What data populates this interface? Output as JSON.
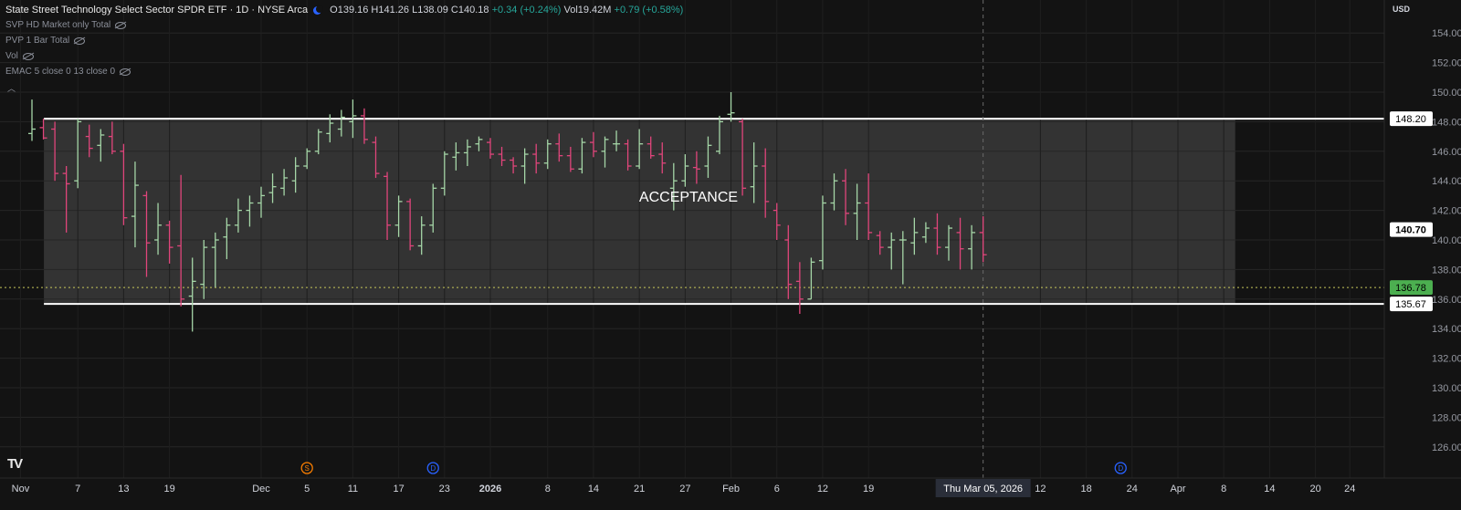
{
  "header": {
    "symbol_title": "State Street Technology Select Sector SPDR ETF · 1D · NYSE Arca",
    "ohlc": {
      "open": "O139.16",
      "high": "H141.26",
      "low": "L138.09",
      "close": "C140.18",
      "change": "+0.34 (+0.24%)"
    },
    "volume": "Vol19.42M",
    "volume_change": "+0.79 (+0.58%)",
    "currency": "USD"
  },
  "indicators": [
    {
      "name": "SVP HD Market only Total",
      "icon": "eye-slash-icon"
    },
    {
      "name": "PVP 1 Bar Total",
      "icon": "eye-slash-icon"
    },
    {
      "name": "Vol",
      "icon": "eye-slash-icon"
    },
    {
      "name": "EMAC 5 close 0 13 close 0",
      "icon": "eye-slash-icon"
    }
  ],
  "colors": {
    "up": "#a5d6a7",
    "down": "#e0457b",
    "box": "#3a3a3a",
    "current_price": "#4caf50"
  },
  "chart_data": {
    "type": "ohlc",
    "y_range": [
      125,
      155
    ],
    "y_ticks": [
      126,
      128,
      130,
      132,
      134,
      136,
      138,
      140,
      142,
      144,
      146,
      148,
      150,
      152,
      154
    ],
    "y_tick_labels": [
      "126.00",
      "128.00",
      "130.00",
      "132.00",
      "134.00",
      "136.00",
      "138.00",
      "140.00",
      "142.00",
      "144.00",
      "146.00",
      "148.00",
      "150.00",
      "152.00",
      "154.00"
    ],
    "x_ticks": [
      {
        "label": "Nov",
        "i": -1
      },
      {
        "label": "7",
        "i": 4
      },
      {
        "label": "13",
        "i": 8
      },
      {
        "label": "19",
        "i": 12
      },
      {
        "label": "Dec",
        "i": 20
      },
      {
        "label": "5",
        "i": 24
      },
      {
        "label": "11",
        "i": 28
      },
      {
        "label": "17",
        "i": 32
      },
      {
        "label": "23",
        "i": 36
      },
      {
        "label": "2026",
        "i": 40
      },
      {
        "label": "8",
        "i": 45
      },
      {
        "label": "14",
        "i": 49
      },
      {
        "label": "21",
        "i": 53
      },
      {
        "label": "27",
        "i": 57
      },
      {
        "label": "Feb",
        "i": 61
      },
      {
        "label": "6",
        "i": 65
      },
      {
        "label": "12",
        "i": 69
      },
      {
        "label": "19",
        "i": 73
      },
      {
        "label": "12",
        "i": 88
      },
      {
        "label": "18",
        "i": 92
      },
      {
        "label": "24",
        "i": 96
      },
      {
        "label": "Apr",
        "i": 100
      },
      {
        "label": "8",
        "i": 104
      },
      {
        "label": "14",
        "i": 108
      },
      {
        "label": "20",
        "i": 112
      },
      {
        "label": "24",
        "i": 115
      }
    ],
    "crosshair": {
      "label": "Thu Mar 05, 2026",
      "i": 83
    },
    "events": [
      {
        "label": "S",
        "i": 24,
        "color": "#f57c00"
      },
      {
        "label": "D",
        "i": 35,
        "color": "#2962ff"
      },
      {
        "label": "D",
        "i": 95,
        "color": "#2962ff"
      }
    ],
    "acceptance_box": {
      "label": "ACCEPTANCE",
      "upper": 148.2,
      "lower": 135.67,
      "start_i": 2,
      "end_i": 105
    },
    "price_labels": [
      {
        "value": 148.2,
        "text": "148.20",
        "style": "white"
      },
      {
        "value": 140.7,
        "text": "140.70",
        "style": "white-bold"
      },
      {
        "value": 136.78,
        "text": "136.78",
        "style": "green"
      },
      {
        "value": 135.67,
        "text": "135.67",
        "style": "white"
      }
    ],
    "bars": [
      [
        147.2,
        149.5,
        146.7,
        147.5
      ],
      [
        147.6,
        148.2,
        146.8,
        146.9
      ],
      [
        147.5,
        148.0,
        144.0,
        144.5
      ],
      [
        144.5,
        145.0,
        140.5,
        143.8
      ],
      [
        144.0,
        148.2,
        143.5,
        148.0
      ],
      [
        147.0,
        147.8,
        145.6,
        146.2
      ],
      [
        146.4,
        147.5,
        145.3,
        147.1
      ],
      [
        147.0,
        148.0,
        145.8,
        146.0
      ],
      [
        146.0,
        146.5,
        141.0,
        141.5
      ],
      [
        141.6,
        145.3,
        139.5,
        143.7
      ],
      [
        143.0,
        143.3,
        137.5,
        139.8
      ],
      [
        140.0,
        142.5,
        139.0,
        141.0
      ],
      [
        141.0,
        141.3,
        138.4,
        139.5
      ],
      [
        139.6,
        144.4,
        135.5,
        136.0
      ],
      [
        136.2,
        138.8,
        133.8,
        137.2
      ],
      [
        137.0,
        140.0,
        136.0,
        139.5
      ],
      [
        139.5,
        140.5,
        136.8,
        140.0
      ],
      [
        140.2,
        141.5,
        138.7,
        141.0
      ],
      [
        141.0,
        142.8,
        140.5,
        142.0
      ],
      [
        142.0,
        143.0,
        140.9,
        142.5
      ],
      [
        142.5,
        143.6,
        141.5,
        143.0
      ],
      [
        143.2,
        144.5,
        142.5,
        143.6
      ],
      [
        143.5,
        144.8,
        143.0,
        144.2
      ],
      [
        144.0,
        145.6,
        143.2,
        145.0
      ],
      [
        145.0,
        146.2,
        144.8,
        146.0
      ],
      [
        146.0,
        147.5,
        145.8,
        147.3
      ],
      [
        147.2,
        148.5,
        146.6,
        147.9
      ],
      [
        147.5,
        148.8,
        147.0,
        148.3
      ],
      [
        148.0,
        149.5,
        146.9,
        148.4
      ],
      [
        148.4,
        148.9,
        146.5,
        146.8
      ],
      [
        146.6,
        147.0,
        144.2,
        144.5
      ],
      [
        144.3,
        144.6,
        140.0,
        141.0
      ],
      [
        141.0,
        143.0,
        140.2,
        142.6
      ],
      [
        142.6,
        142.8,
        139.3,
        139.6
      ],
      [
        139.6,
        141.6,
        139.0,
        141.0
      ],
      [
        141.0,
        143.8,
        140.5,
        143.5
      ],
      [
        143.5,
        146.0,
        143.0,
        145.8
      ],
      [
        145.6,
        146.6,
        144.7,
        145.9
      ],
      [
        145.9,
        146.8,
        145.0,
        146.3
      ],
      [
        146.5,
        147.0,
        146.0,
        146.8
      ],
      [
        146.6,
        146.9,
        145.5,
        145.8
      ],
      [
        145.8,
        146.3,
        145.0,
        145.4
      ],
      [
        145.4,
        145.6,
        144.5,
        145.0
      ],
      [
        145.0,
        146.2,
        143.8,
        145.8
      ],
      [
        145.8,
        146.5,
        144.5,
        145.2
      ],
      [
        145.2,
        146.8,
        144.8,
        146.5
      ],
      [
        146.5,
        147.2,
        145.3,
        145.7
      ],
      [
        145.7,
        146.3,
        144.6,
        144.8
      ],
      [
        144.8,
        146.9,
        144.5,
        146.6
      ],
      [
        146.6,
        147.3,
        145.6,
        146.0
      ],
      [
        146.0,
        147.0,
        144.9,
        146.8
      ],
      [
        146.5,
        147.4,
        146.0,
        146.5
      ],
      [
        146.5,
        146.8,
        144.7,
        145.0
      ],
      [
        145.0,
        147.5,
        144.8,
        146.5
      ],
      [
        146.5,
        147.0,
        145.5,
        145.7
      ],
      [
        145.8,
        146.6,
        144.5,
        145.2
      ],
      [
        143.5,
        145.2,
        142.0,
        144.0
      ],
      [
        144.0,
        145.8,
        143.6,
        145.0
      ],
      [
        144.9,
        146.0,
        143.8,
        144.8
      ],
      [
        145.0,
        147.0,
        144.2,
        146.4
      ],
      [
        146.0,
        148.4,
        145.8,
        148.0
      ],
      [
        148.5,
        150.0,
        148.0,
        148.6
      ],
      [
        148.0,
        148.2,
        143.0,
        143.5
      ],
      [
        143.6,
        146.6,
        142.5,
        145.0
      ],
      [
        145.0,
        146.2,
        141.5,
        142.6
      ],
      [
        142.0,
        142.5,
        140.0,
        141.0
      ],
      [
        140.0,
        141.0,
        136.0,
        137.0
      ],
      [
        137.2,
        138.5,
        135.0,
        136.0
      ],
      [
        136.0,
        138.8,
        136.0,
        138.5
      ],
      [
        138.6,
        143.0,
        138.0,
        142.5
      ],
      [
        142.5,
        144.5,
        142.0,
        144.0
      ],
      [
        144.0,
        144.8,
        141.0,
        141.8
      ],
      [
        141.8,
        143.8,
        140.0,
        142.5
      ],
      [
        142.5,
        144.5,
        140.0,
        140.5
      ],
      [
        140.3,
        140.6,
        139.0,
        139.5
      ],
      [
        139.5,
        140.5,
        138.0,
        140.0
      ],
      [
        140.0,
        140.6,
        137.0,
        140.0
      ],
      [
        139.8,
        141.5,
        139.0,
        140.5
      ],
      [
        140.2,
        141.2,
        139.8,
        140.8
      ],
      [
        140.8,
        141.8,
        139.0,
        139.5
      ],
      [
        139.5,
        141.0,
        138.6,
        140.8
      ],
      [
        140.5,
        141.5,
        138.0,
        139.4
      ],
      [
        139.4,
        141.0,
        138.0,
        140.5
      ],
      [
        140.5,
        141.6,
        138.5,
        139.0
      ]
    ]
  }
}
